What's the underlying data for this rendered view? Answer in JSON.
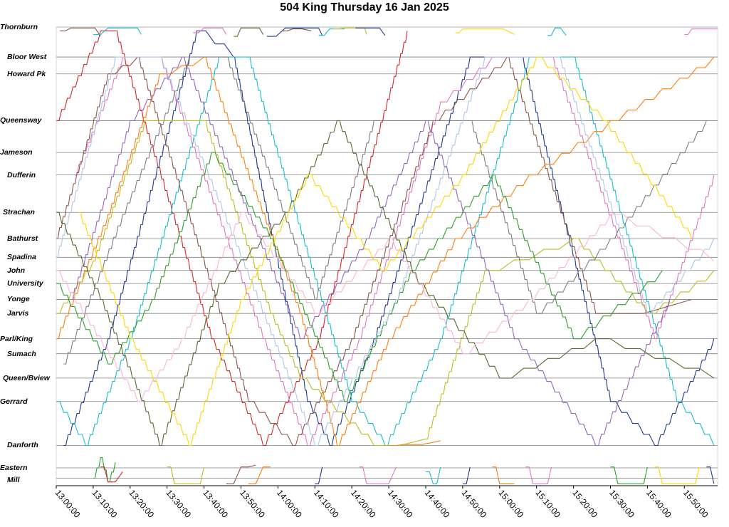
{
  "chart_data": {
    "type": "line",
    "title": "504 King Thursday 16 Jan 2025",
    "xlabel": "",
    "ylabel": "",
    "x_ticks": [
      "13:00:00",
      "13:10:00",
      "13:20:00",
      "13:30:00",
      "13:40:00",
      "13:50:00",
      "14:00:00",
      "14:10:00",
      "14:20:00",
      "14:30:00",
      "14:40:00",
      "14:50:00",
      "15:00:00",
      "15:10:00",
      "15:20:00",
      "15:30:00",
      "15:40:00",
      "15:50:00"
    ],
    "xlim": [
      "13:00:00",
      "15:59:00"
    ],
    "grid": "horizontal at each stop",
    "stops": [
      {
        "label": "Thornburn",
        "y": 0
      },
      {
        "label": "Bloor West",
        "y": 3.2
      },
      {
        "label": "Howard Pk",
        "y": 5.0
      },
      {
        "label": "Queensway",
        "y": 10.0
      },
      {
        "label": "Jameson",
        "y": 13.4
      },
      {
        "label": "Dufferin",
        "y": 15.8
      },
      {
        "label": "Strachan",
        "y": 19.8
      },
      {
        "label": "Bathurst",
        "y": 22.6
      },
      {
        "label": "Spadina",
        "y": 24.6
      },
      {
        "label": "John",
        "y": 26.0
      },
      {
        "label": "University",
        "y": 27.4
      },
      {
        "label": "Yonge",
        "y": 29.1
      },
      {
        "label": "Jarvis",
        "y": 30.6
      },
      {
        "label": "Parl/King",
        "y": 33.3
      },
      {
        "label": "Sumach",
        "y": 34.9
      },
      {
        "label": "Queen/Bview",
        "y": 37.5
      },
      {
        "label": "Gerrard",
        "y": 40.0
      },
      {
        "label": "Danforth",
        "y": 44.7
      },
      {
        "label": "Eastern",
        "y": 47.1
      },
      {
        "label": "Mill",
        "y": 48.2
      }
    ],
    "series": [
      {
        "color": "#d62728",
        "points": [
          [
            0,
            10
          ],
          [
            12,
            0.4
          ],
          [
            16,
            0.4
          ],
          [
            42,
            33.3
          ],
          [
            56,
            44.7
          ],
          [
            71,
            33.3
          ],
          [
            95,
            0.4
          ]
        ]
      },
      {
        "color": "#1f3a93",
        "points": [
          [
            2,
            44.7
          ],
          [
            14,
            33.3
          ],
          [
            38,
            0.4
          ],
          [
            48,
            3.2
          ],
          [
            68,
            40.0
          ],
          [
            74,
            44.7
          ],
          [
            86,
            33.3
          ],
          [
            112,
            3.2
          ],
          [
            126,
            3.2
          ],
          [
            150,
            40.0
          ],
          [
            162,
            44.7
          ],
          [
            178,
            33.3
          ]
        ]
      },
      {
        "color": "#17becf",
        "points": [
          [
            0,
            40.0
          ],
          [
            8,
            44.7
          ],
          [
            20,
            33.3
          ],
          [
            44,
            3.2
          ],
          [
            52,
            3.2
          ],
          [
            80,
            40.0
          ],
          [
            89,
            44.7
          ],
          [
            104,
            33.3
          ],
          [
            128,
            3.2
          ],
          [
            140,
            3.2
          ],
          [
            168,
            40.0
          ],
          [
            178,
            44.7
          ]
        ]
      },
      {
        "color": "#e377c2",
        "points": [
          [
            5,
            15.8
          ],
          [
            18,
            3.2
          ],
          [
            28,
            3.2
          ],
          [
            56,
            33.3
          ],
          [
            68,
            44.7
          ],
          [
            82,
            33.3
          ],
          [
            104,
            8.0
          ],
          [
            118,
            3.2
          ],
          [
            134,
            3.2
          ],
          [
            162,
            33.3
          ],
          [
            178,
            15.8
          ]
        ]
      },
      {
        "color": "#8c564b",
        "points": [
          [
            0,
            22.6
          ],
          [
            14,
            5.0
          ],
          [
            22,
            3.2
          ],
          [
            52,
            40.0
          ],
          [
            64,
            44.7
          ],
          [
            80,
            33.3
          ],
          [
            102,
            10.0
          ],
          [
            122,
            3.2
          ],
          [
            146,
            30.6
          ],
          [
            172,
            29.1
          ]
        ]
      },
      {
        "color": "#ff7f0e",
        "points": [
          [
            0,
            33.3
          ],
          [
            14,
            20.0
          ],
          [
            28,
            5.0
          ],
          [
            40,
            3.2
          ],
          [
            66,
            30.6
          ],
          [
            76,
            44.7
          ],
          [
            90,
            33.3
          ],
          [
            108,
            22.6
          ],
          [
            128,
            15.8
          ],
          [
            150,
            10.0
          ],
          [
            178,
            3.2
          ]
        ]
      },
      {
        "color": "#bcbd22",
        "points": [
          [
            0,
            30.6
          ],
          [
            10,
            25.0
          ],
          [
            24,
            10.0
          ],
          [
            40,
            10.0
          ],
          [
            58,
            30.6
          ],
          [
            66,
            37.5
          ],
          [
            86,
            44.7
          ],
          [
            100,
            44.0
          ],
          [
            116,
            26.0
          ],
          [
            140,
            22.6
          ],
          [
            160,
            30.6
          ],
          [
            178,
            26.0
          ]
        ]
      },
      {
        "color": "#7f7f7f",
        "points": [
          [
            2,
            36.0
          ],
          [
            18,
            20.0
          ],
          [
            36,
            3.2
          ],
          [
            46,
            3.2
          ],
          [
            70,
            29.1
          ],
          [
            86,
            10.0
          ],
          [
            112,
            10.0
          ],
          [
            130,
            30.6
          ],
          [
            150,
            22.6
          ],
          [
            176,
            10.0
          ]
        ]
      },
      {
        "color": "#2ca02c",
        "points": [
          [
            0,
            27.4
          ],
          [
            14,
            36.0
          ],
          [
            26,
            29.1
          ],
          [
            42,
            13.4
          ],
          [
            58,
            22.6
          ],
          [
            78,
            40.0
          ],
          [
            96,
            26.0
          ],
          [
            118,
            15.8
          ],
          [
            140,
            33.3
          ],
          [
            164,
            26.0
          ]
        ]
      },
      {
        "color": "#aec7e8",
        "points": [
          [
            0,
            24.6
          ],
          [
            16,
            3.2
          ],
          [
            28,
            3.2
          ],
          [
            50,
            24.6
          ],
          [
            70,
            44.7
          ],
          [
            92,
            29.1
          ],
          [
            116,
            3.2
          ],
          [
            136,
            3.2
          ],
          [
            160,
            30.6
          ],
          [
            178,
            22.6
          ]
        ]
      },
      {
        "color": "#9467bd",
        "points": [
          [
            4,
            29.1
          ],
          [
            20,
            10.0
          ],
          [
            34,
            3.2
          ],
          [
            52,
            20.0
          ],
          [
            66,
            33.3
          ],
          [
            84,
            22.6
          ],
          [
            100,
            10.0
          ],
          [
            124,
            33.3
          ],
          [
            146,
            44.7
          ],
          [
            166,
            29.1
          ]
        ]
      },
      {
        "color": "#556b2f",
        "points": [
          [
            0,
            19.8
          ],
          [
            12,
            29.1
          ],
          [
            28,
            44.7
          ],
          [
            44,
            27.4
          ],
          [
            62,
            19.8
          ],
          [
            76,
            10.0
          ],
          [
            98,
            27.4
          ],
          [
            120,
            37.5
          ],
          [
            146,
            33.3
          ],
          [
            178,
            37.5
          ]
        ]
      },
      {
        "color": "#f7b6d2",
        "points": [
          [
            0,
            26.0
          ],
          [
            22,
            40.0
          ],
          [
            34,
            33.3
          ],
          [
            50,
            19.8
          ],
          [
            70,
            30.6
          ],
          [
            90,
            22.6
          ],
          [
            110,
            34.9
          ],
          [
            128,
            29.1
          ],
          [
            150,
            20.0
          ],
          [
            178,
            25.0
          ]
        ]
      },
      {
        "color": "#ffd700",
        "points": [
          [
            6,
            19.8
          ],
          [
            20,
            33.3
          ],
          [
            36,
            44.7
          ],
          [
            50,
            29.1
          ],
          [
            68,
            15.8
          ],
          [
            88,
            26.0
          ],
          [
            110,
            15.8
          ],
          [
            130,
            3.2
          ],
          [
            148,
            10.0
          ],
          [
            172,
            22.6
          ]
        ]
      }
    ],
    "partial_segments": [
      {
        "color": "#8c564b",
        "points": [
          [
            1,
            0.4
          ],
          [
            4,
            0.1
          ],
          [
            9,
            0.1
          ],
          [
            12,
            1.0
          ]
        ]
      },
      {
        "color": "#17becf",
        "points": [
          [
            10,
            0.8
          ],
          [
            14,
            0.1
          ],
          [
            21,
            0.1
          ],
          [
            23,
            0.8
          ]
        ]
      },
      {
        "color": "#e377c2",
        "points": [
          [
            37,
            0.6
          ],
          [
            40,
            0.1
          ],
          [
            44,
            0.1
          ],
          [
            46,
            0.8
          ]
        ]
      },
      {
        "color": "#556b2f",
        "points": [
          [
            48,
            1.0
          ],
          [
            50,
            0.1
          ],
          [
            54,
            0.1
          ],
          [
            56,
            0.8
          ]
        ]
      },
      {
        "color": "#1f3a93",
        "points": [
          [
            57,
            1.0
          ],
          [
            62,
            0.1
          ],
          [
            70,
            0.1
          ],
          [
            72,
            0.9
          ]
        ]
      },
      {
        "color": "#8c564b",
        "points": [
          [
            61,
            0.4
          ],
          [
            64,
            0.2
          ],
          [
            69,
            0.4
          ]
        ]
      },
      {
        "color": "#17becf",
        "points": [
          [
            71,
            0.9
          ],
          [
            74,
            0.2
          ],
          [
            78,
            0.2
          ]
        ]
      },
      {
        "color": "#bcbd22",
        "points": [
          [
            75,
            0.2
          ],
          [
            78,
            0.1
          ],
          [
            83,
            0.1
          ],
          [
            84,
            0.8
          ]
        ]
      },
      {
        "color": "#1f3a93",
        "points": [
          [
            81,
            0.1
          ],
          [
            86,
            0.1
          ],
          [
            89,
            0.9
          ]
        ]
      },
      {
        "color": "#ffd700",
        "points": [
          [
            108,
            0.6
          ],
          [
            110,
            0.2
          ],
          [
            118,
            0.2
          ],
          [
            124,
            0.8
          ]
        ]
      },
      {
        "color": "#17becf",
        "points": [
          [
            133,
            0.9
          ],
          [
            135,
            0.1
          ],
          [
            138,
            0.9
          ]
        ]
      },
      {
        "color": "#e377c2",
        "points": [
          [
            170,
            0.8
          ],
          [
            172,
            0.2
          ],
          [
            179,
            0.2
          ]
        ]
      },
      {
        "color": "#2ca02c",
        "points": [
          [
            10,
            48.2
          ],
          [
            12,
            46.0
          ],
          [
            14,
            48.6
          ],
          [
            16,
            46.5
          ]
        ]
      },
      {
        "color": "#d62728",
        "points": [
          [
            12,
            47.0
          ],
          [
            14,
            48.6
          ],
          [
            18,
            47.5
          ]
        ]
      },
      {
        "color": "#bcbd22",
        "points": [
          [
            30,
            47.0
          ],
          [
            32,
            48.8
          ],
          [
            38,
            48.8
          ],
          [
            40,
            47.0
          ]
        ]
      },
      {
        "color": "#8c564b",
        "points": [
          [
            46,
            48.8
          ],
          [
            50,
            47.0
          ],
          [
            54,
            46.8
          ]
        ]
      },
      {
        "color": "#ff7f0e",
        "points": [
          [
            52,
            48.8
          ],
          [
            56,
            47.0
          ],
          [
            58,
            47.0
          ]
        ]
      },
      {
        "color": "#1f3a93",
        "points": [
          [
            70,
            48.8
          ],
          [
            72,
            47.0
          ]
        ]
      },
      {
        "color": "#e377c2",
        "points": [
          [
            82,
            47.0
          ],
          [
            84,
            48.8
          ],
          [
            88,
            48.8
          ],
          [
            92,
            47.0
          ]
        ]
      },
      {
        "color": "#ff7f0e",
        "points": [
          [
            90,
            44.7
          ],
          [
            94,
            44.6
          ],
          [
            104,
            44.2
          ]
        ]
      },
      {
        "color": "#17becf",
        "points": [
          [
            100,
            47.5
          ],
          [
            102,
            48.8
          ],
          [
            104,
            47.0
          ]
        ]
      },
      {
        "color": "#1f3a93",
        "points": [
          [
            110,
            48.8
          ],
          [
            112,
            47.0
          ]
        ]
      },
      {
        "color": "#ff7f0e",
        "points": [
          [
            118,
            47.0
          ],
          [
            120,
            48.8
          ],
          [
            124,
            48.8
          ]
        ]
      },
      {
        "color": "#e377c2",
        "points": [
          [
            127,
            47.0
          ],
          [
            129,
            48.8
          ],
          [
            132,
            48.8
          ],
          [
            134,
            47.0
          ]
        ]
      },
      {
        "color": "#2ca02c",
        "points": [
          [
            150,
            47.0
          ],
          [
            152,
            48.8
          ],
          [
            158,
            48.8
          ],
          [
            160,
            47.0
          ]
        ]
      },
      {
        "color": "#ffd700",
        "points": [
          [
            162,
            47.0
          ],
          [
            164,
            48.8
          ],
          [
            172,
            48.8
          ],
          [
            174,
            47.0
          ]
        ]
      },
      {
        "color": "#1f3a93",
        "points": [
          [
            176,
            47.0
          ],
          [
            178,
            48.8
          ]
        ]
      }
    ],
    "colors": {
      "grid": "#808080",
      "axis": "#000000"
    }
  }
}
